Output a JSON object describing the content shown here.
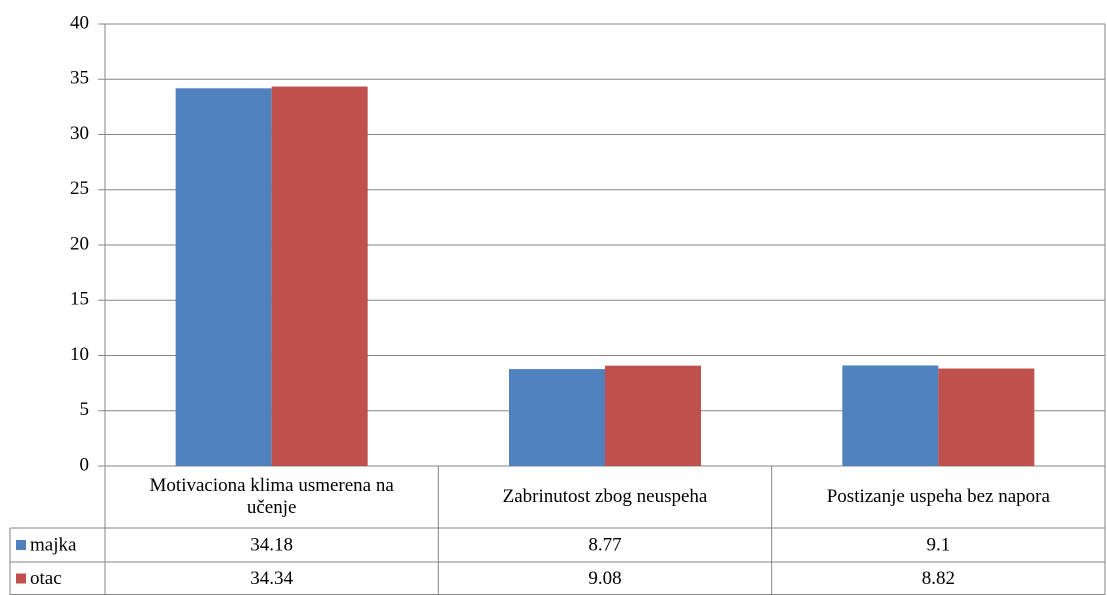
{
  "chart_data": {
    "type": "bar",
    "categories": [
      "Motivaciona klima usmerena na učenje",
      "Zabrinutost zbog neuspeha",
      "Postizanje uspeha bez napora"
    ],
    "series": [
      {
        "name": "majka",
        "color": "#4f81bd",
        "values": [
          34.18,
          8.77,
          9.1
        ]
      },
      {
        "name": "otac",
        "color": "#c0504d",
        "values": [
          34.34,
          9.08,
          8.82
        ]
      }
    ],
    "ylim": [
      0,
      40
    ],
    "yticks": [
      0,
      5,
      10,
      15,
      20,
      25,
      30,
      35,
      40
    ],
    "grid": true,
    "legend": "table"
  }
}
